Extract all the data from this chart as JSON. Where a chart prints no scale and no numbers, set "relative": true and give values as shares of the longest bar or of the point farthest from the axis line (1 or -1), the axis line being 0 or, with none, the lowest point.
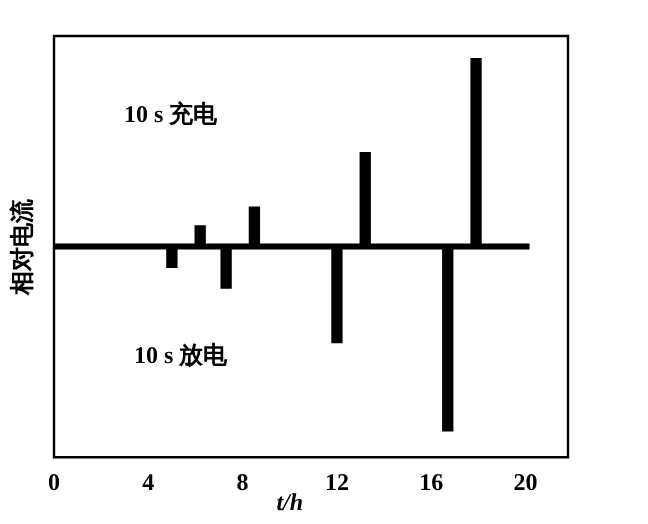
{
  "chart_data": {
    "type": "bar",
    "relative": true,
    "xlabel": "t/h",
    "ylabel": "相对电流",
    "x": [
      5,
      6.2,
      7.3,
      8.5,
      12,
      13.2,
      16.7,
      17.9
    ],
    "values": [
      -0.11,
      0.11,
      -0.22,
      0.21,
      -0.51,
      0.5,
      -0.98,
      1
    ],
    "color": "#000000",
    "xlim": [
      0,
      21.8
    ],
    "xticks": [
      0,
      4,
      8,
      12,
      16,
      20
    ],
    "annotations": [
      "10 s 充电",
      "10 s 放电"
    ],
    "legend": false,
    "grid": false
  }
}
